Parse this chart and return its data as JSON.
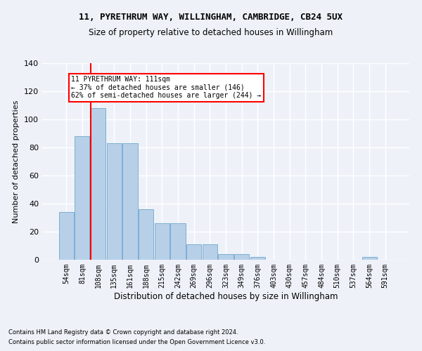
{
  "title": "11, PYRETHRUM WAY, WILLINGHAM, CAMBRIDGE, CB24 5UX",
  "subtitle": "Size of property relative to detached houses in Willingham",
  "xlabel": "Distribution of detached houses by size in Willingham",
  "ylabel": "Number of detached properties",
  "categories": [
    "54sqm",
    "81sqm",
    "108sqm",
    "135sqm",
    "161sqm",
    "188sqm",
    "215sqm",
    "242sqm",
    "269sqm",
    "296sqm",
    "323sqm",
    "349sqm",
    "376sqm",
    "403sqm",
    "430sqm",
    "457sqm",
    "484sqm",
    "510sqm",
    "537sqm",
    "564sqm",
    "591sqm"
  ],
  "values": [
    34,
    88,
    108,
    83,
    83,
    36,
    26,
    26,
    11,
    11,
    4,
    4,
    2,
    0,
    0,
    0,
    0,
    0,
    0,
    2,
    0
  ],
  "bar_color": "#b8cfe8",
  "bar_edge_color": "#7bafd4",
  "background_color": "#eef2f8",
  "grid_color": "#ffffff",
  "annotation_box_text": "11 PYRETHRUM WAY: 111sqm\n← 37% of detached houses are smaller (146)\n62% of semi-detached houses are larger (244) →",
  "annotation_box_color": "white",
  "annotation_box_edge_color": "red",
  "annotation_line_color": "red",
  "footer_line1": "Contains HM Land Registry data © Crown copyright and database right 2024.",
  "footer_line2": "Contains public sector information licensed under the Open Government Licence v3.0.",
  "ylim": [
    0,
    140
  ],
  "yticks": [
    0,
    20,
    40,
    60,
    80,
    100,
    120,
    140
  ],
  "title_fontsize": 9,
  "subtitle_fontsize": 8.5,
  "xlabel_fontsize": 8.5,
  "ylabel_fontsize": 8,
  "tick_fontsize": 7,
  "footer_fontsize": 6
}
